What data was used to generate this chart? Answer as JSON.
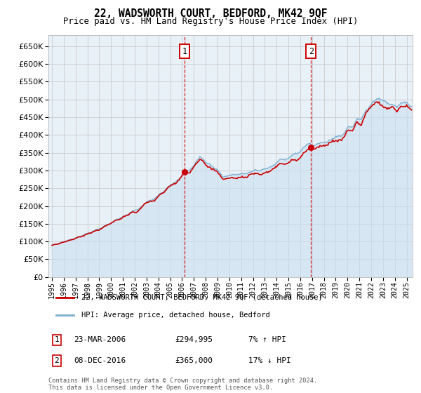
{
  "title": "22, WADSWORTH COURT, BEDFORD, MK42 9QF",
  "subtitle": "Price paid vs. HM Land Registry's House Price Index (HPI)",
  "legend_property": "22, WADSWORTH COURT, BEDFORD, MK42 9QF (detached house)",
  "legend_hpi": "HPI: Average price, detached house, Bedford",
  "sale1_label": "1",
  "sale1_date": "23-MAR-2006",
  "sale1_price": 294995,
  "sale1_note": "7% ↑ HPI",
  "sale2_label": "2",
  "sale2_date": "08-DEC-2016",
  "sale2_price": 365000,
  "sale2_note": "17% ↓ HPI",
  "footer": "Contains HM Land Registry data © Crown copyright and database right 2024.\nThis data is licensed under the Open Government Licence v3.0.",
  "property_color": "#cc0000",
  "hpi_color": "#7aadcc",
  "hpi_fill_color": "#cce0f0",
  "marker_box_color": "#cc0000",
  "vline_color": "#cc0000",
  "grid_color": "#cccccc",
  "background_color": "#e8f0f8",
  "ylim": [
    0,
    680000
  ],
  "yticks": [
    0,
    50000,
    100000,
    150000,
    200000,
    250000,
    300000,
    350000,
    400000,
    450000,
    500000,
    550000,
    600000,
    650000
  ],
  "year_start": 1995,
  "year_end": 2025,
  "sale1_t": 2006.208,
  "sale2_t": 2016.917
}
